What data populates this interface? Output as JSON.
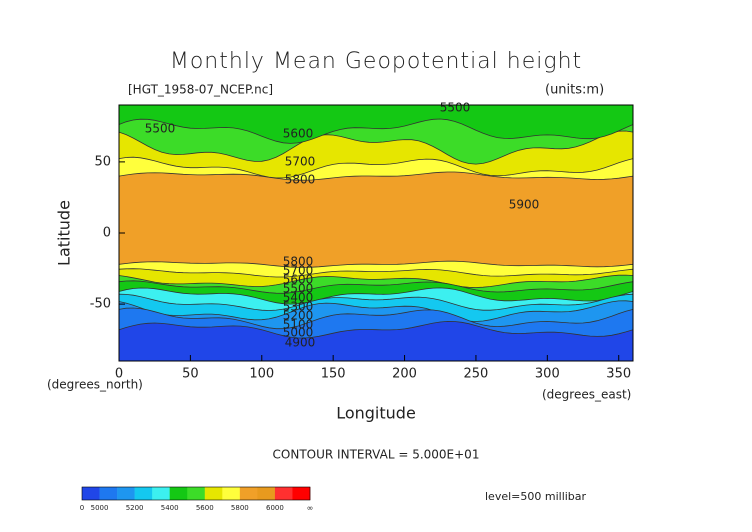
{
  "chart_data": {
    "type": "contour",
    "title": "Monthly Mean Geopotential height",
    "subtitle": "[HGT_1958-07_NCEP.nc]",
    "units_label": "(units:m)",
    "x_label": "Longitude",
    "x_units": "(degrees_east)",
    "y_label": "Latitude",
    "y_units": "(degrees_north)",
    "xlim": [
      0,
      360
    ],
    "ylim": [
      -90,
      90
    ],
    "xticks": [
      0,
      50,
      100,
      150,
      200,
      250,
      300,
      350
    ],
    "yticks": [
      -50,
      0,
      50
    ],
    "contour_interval_text": "CONTOUR INTERVAL = 5.000E+01",
    "level_text": "level=500 millibar",
    "contour_labels": [
      5500,
      5500,
      5600,
      5700,
      5800,
      5900,
      5800,
      5700,
      5600,
      5500,
      5400,
      5300,
      5200,
      5100,
      5000,
      4900
    ],
    "colorbar": {
      "levels": [
        0,
        5000,
        5100,
        5200,
        5300,
        5400,
        5500,
        5600,
        5700,
        5800,
        5900,
        6000,
        6100
      ],
      "colors": [
        "#2046e8",
        "#1e78f0",
        "#1e96f0",
        "#14c8f0",
        "#3cf0f0",
        "#14c814",
        "#3cdc28",
        "#e6e600",
        "#ffff3c",
        "#f0a028",
        "#e89a1e",
        "#ff3030",
        "#ff0000"
      ],
      "ticks": [
        0,
        5000,
        5200,
        5400,
        5600,
        5800,
        6000
      ],
      "end_label": "∞"
    }
  }
}
